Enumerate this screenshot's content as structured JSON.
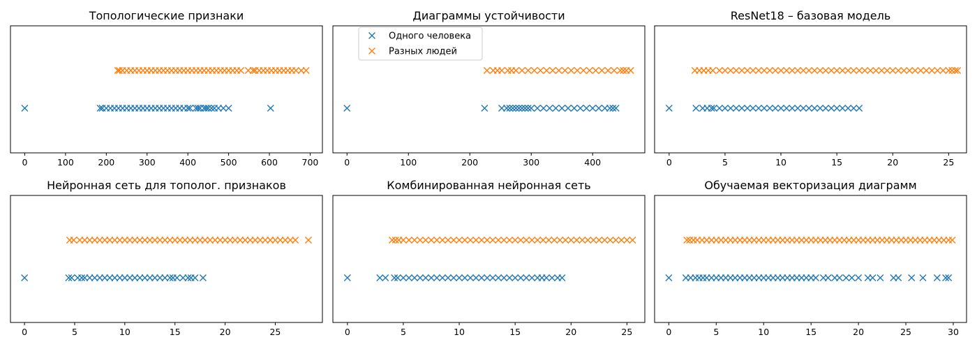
{
  "colors": {
    "same_person": "#1f77b4",
    "different_people": "#ff7f0e",
    "axis": "#000000",
    "background": "#ffffff"
  },
  "legend": {
    "location": "upper-left",
    "entries": [
      {
        "label": "Одного человека",
        "color_key": "same_person",
        "marker": "x"
      },
      {
        "label": "Разных людей",
        "color_key": "different_people",
        "marker": "x"
      }
    ]
  },
  "chart_data": [
    {
      "type": "scatter",
      "title": "Топологические признаки",
      "xlabel": "",
      "ylabel": "",
      "xlim": [
        -35,
        730
      ],
      "xticks": [
        0,
        100,
        200,
        300,
        400,
        500,
        600,
        700
      ],
      "yticks_shown": false,
      "grid": false,
      "series": [
        {
          "name": "Одного человека",
          "color_key": "same_person",
          "row": 0,
          "x": [
            0,
            185,
            190,
            200,
            210,
            220,
            230,
            240,
            250,
            260,
            270,
            280,
            290,
            300,
            310,
            320,
            330,
            340,
            350,
            360,
            370,
            380,
            390,
            400,
            405,
            420,
            425,
            430,
            440,
            445,
            450,
            458,
            465,
            475,
            487,
            500,
            603
          ]
        },
        {
          "name": "Разных людей",
          "color_key": "different_people",
          "row": 1,
          "x": [
            228,
            232,
            240,
            250,
            260,
            270,
            280,
            290,
            300,
            310,
            320,
            330,
            340,
            350,
            360,
            370,
            380,
            390,
            400,
            410,
            420,
            430,
            440,
            450,
            460,
            470,
            480,
            490,
            500,
            510,
            520,
            530,
            548,
            560,
            565,
            575,
            585,
            595,
            605,
            615,
            625,
            635,
            645,
            655,
            665,
            678,
            690
          ]
        }
      ]
    },
    {
      "type": "scatter",
      "title": "Диаграммы устойчивости",
      "xlabel": "",
      "ylabel": "",
      "xlim": [
        -23,
        485
      ],
      "xticks": [
        0,
        100,
        200,
        300,
        400
      ],
      "yticks_shown": false,
      "grid": false,
      "series": [
        {
          "name": "Одного человека",
          "color_key": "same_person",
          "row": 0,
          "x": [
            0,
            224,
            252,
            260,
            265,
            270,
            275,
            280,
            285,
            290,
            295,
            300,
            310,
            320,
            330,
            340,
            350,
            360,
            370,
            380,
            390,
            400,
            410,
            420,
            428,
            433,
            438
          ]
        },
        {
          "name": "Разных людей",
          "color_key": "different_people",
          "row": 1,
          "x": [
            228,
            238,
            245,
            252,
            262,
            268,
            275,
            285,
            295,
            305,
            315,
            325,
            335,
            345,
            355,
            365,
            375,
            385,
            395,
            405,
            415,
            425,
            435,
            445,
            450,
            455,
            462
          ]
        }
      ]
    },
    {
      "type": "scatter",
      "title": "ResNet18 – базовая модель",
      "xlabel": "",
      "ylabel": "",
      "xlim": [
        -1.3,
        26.6
      ],
      "xticks": [
        0,
        5,
        10,
        15,
        20,
        25
      ],
      "yticks_shown": false,
      "grid": false,
      "series": [
        {
          "name": "Одного человека",
          "color_key": "same_person",
          "row": 0,
          "x": [
            0,
            2.4,
            3.0,
            3.4,
            3.8,
            4.0,
            4.5,
            5.0,
            5.5,
            6.0,
            6.5,
            7.0,
            7.5,
            8.0,
            8.5,
            9.0,
            9.5,
            10.0,
            10.5,
            11.0,
            11.5,
            12.0,
            12.5,
            13.0,
            13.5,
            14.0,
            14.5,
            15.0,
            15.5,
            16.0,
            16.5,
            17.0
          ]
        },
        {
          "name": "Разных людей",
          "color_key": "different_people",
          "row": 1,
          "x": [
            2.3,
            2.7,
            3.1,
            3.5,
            3.9,
            4.5,
            5.0,
            5.5,
            6.0,
            6.5,
            7.0,
            7.5,
            8.0,
            8.5,
            9.0,
            9.5,
            10.0,
            10.5,
            11.0,
            11.5,
            12.0,
            12.5,
            13.0,
            13.5,
            14.0,
            14.5,
            15.0,
            15.5,
            16.0,
            16.5,
            17.0,
            17.5,
            18.0,
            18.5,
            19.0,
            19.5,
            20.0,
            20.5,
            21.0,
            21.5,
            22.0,
            22.5,
            23.0,
            23.5,
            24.0,
            24.5,
            25.0,
            25.3,
            25.6,
            25.8
          ]
        }
      ]
    },
    {
      "type": "scatter",
      "title": "Нейронная сеть для тополог. признаков",
      "xlabel": "",
      "ylabel": "",
      "xlim": [
        -1.4,
        29.7
      ],
      "xticks": [
        0,
        5,
        10,
        15,
        20,
        25
      ],
      "yticks_shown": false,
      "grid": false,
      "series": [
        {
          "name": "Одного человека",
          "color_key": "same_person",
          "row": 0,
          "x": [
            0,
            4.4,
            4.7,
            5.3,
            5.7,
            6.0,
            6.5,
            7.0,
            7.5,
            8.0,
            8.5,
            9.0,
            9.5,
            10.0,
            10.5,
            11.0,
            11.5,
            12.0,
            12.5,
            13.0,
            13.5,
            14.0,
            14.5,
            14.8,
            15.2,
            15.8,
            16.3,
            16.6,
            17.0,
            17.8
          ]
        },
        {
          "name": "Разных людей",
          "color_key": "different_people",
          "row": 1,
          "x": [
            4.5,
            4.9,
            5.5,
            6.0,
            6.5,
            7.0,
            7.5,
            8.0,
            8.5,
            9.0,
            9.5,
            10.0,
            10.5,
            11.0,
            11.5,
            12.0,
            12.5,
            13.0,
            13.5,
            14.0,
            14.5,
            15.0,
            15.5,
            16.0,
            16.5,
            17.0,
            17.5,
            18.0,
            18.5,
            19.0,
            19.5,
            20.0,
            20.5,
            21.0,
            21.5,
            22.0,
            22.5,
            23.0,
            23.5,
            24.0,
            24.5,
            25.0,
            25.5,
            26.0,
            26.5,
            27.0,
            28.3
          ]
        }
      ]
    },
    {
      "type": "scatter",
      "title": "Комбинированная нейронная сеть",
      "xlabel": "",
      "ylabel": "",
      "xlim": [
        -1.3,
        26.6
      ],
      "xticks": [
        0,
        5,
        10,
        15,
        20,
        25
      ],
      "yticks_shown": false,
      "grid": false,
      "series": [
        {
          "name": "Одного человека",
          "color_key": "same_person",
          "row": 0,
          "x": [
            0,
            2.9,
            3.4,
            4.2,
            4.5,
            5.0,
            5.5,
            6.0,
            6.5,
            7.0,
            7.5,
            8.0,
            8.5,
            9.0,
            9.5,
            10.0,
            10.5,
            11.0,
            11.5,
            12.0,
            12.5,
            13.0,
            13.5,
            14.0,
            14.5,
            15.0,
            15.5,
            16.0,
            16.5,
            17.0,
            17.4,
            17.8,
            18.3,
            18.8,
            19.2
          ]
        },
        {
          "name": "Разных людей",
          "color_key": "different_people",
          "row": 1,
          "x": [
            4.0,
            4.3,
            4.6,
            5.0,
            5.5,
            6.0,
            6.5,
            7.0,
            7.5,
            8.0,
            8.5,
            9.0,
            9.5,
            10.0,
            10.5,
            11.0,
            11.5,
            12.0,
            12.5,
            13.0,
            13.5,
            14.0,
            14.5,
            15.0,
            15.5,
            16.0,
            16.5,
            17.0,
            17.5,
            18.0,
            18.5,
            19.0,
            19.5,
            20.0,
            20.5,
            21.0,
            21.5,
            22.0,
            22.5,
            23.0,
            23.5,
            24.0,
            24.5,
            25.0,
            25.5
          ]
        }
      ]
    },
    {
      "type": "scatter",
      "title": "Обучаемая векторизация диаграмм",
      "xlabel": "",
      "ylabel": "",
      "xlim": [
        -1.5,
        31.4
      ],
      "xticks": [
        0,
        5,
        10,
        15,
        20,
        25,
        30
      ],
      "yticks_shown": false,
      "grid": false,
      "series": [
        {
          "name": "Одного человека",
          "color_key": "same_person",
          "row": 0,
          "x": [
            0,
            1.8,
            2.3,
            2.8,
            3.2,
            3.6,
            4.0,
            4.5,
            5.0,
            5.5,
            6.0,
            6.5,
            7.0,
            7.5,
            8.0,
            8.5,
            9.0,
            9.5,
            10.0,
            10.5,
            11.0,
            11.5,
            12.0,
            12.5,
            13.0,
            13.5,
            14.0,
            14.5,
            15.0,
            15.5,
            16.3,
            16.8,
            17.5,
            18.0,
            18.7,
            19.3,
            20.0,
            21.0,
            21.5,
            22.3,
            23.7,
            24.2,
            25.6,
            26.8,
            28.3,
            29.2,
            29.5
          ]
        },
        {
          "name": "Разных людей",
          "color_key": "different_people",
          "row": 1,
          "x": [
            1.9,
            2.2,
            2.6,
            3.0,
            3.5,
            4.0,
            4.5,
            5.0,
            5.5,
            6.0,
            6.5,
            7.0,
            7.5,
            8.0,
            8.5,
            9.0,
            9.5,
            10.0,
            10.5,
            11.0,
            11.5,
            12.0,
            12.5,
            13.0,
            13.5,
            14.0,
            14.5,
            15.0,
            15.5,
            16.0,
            16.5,
            17.0,
            17.5,
            18.0,
            18.5,
            19.0,
            19.5,
            20.0,
            20.5,
            21.0,
            21.5,
            22.0,
            22.5,
            23.0,
            23.5,
            24.0,
            24.5,
            25.0,
            25.5,
            26.0,
            26.5,
            27.0,
            27.5,
            28.0,
            28.5,
            29.0,
            29.5,
            29.9
          ]
        }
      ]
    }
  ]
}
